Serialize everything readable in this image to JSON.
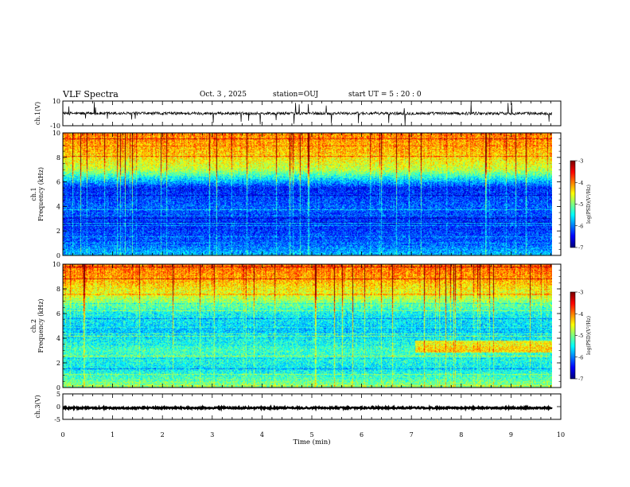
{
  "header": {
    "title": "VLF Spectra",
    "date": "Oct. 3  , 2025",
    "station": "station=OUJ",
    "start": "start  UT  =   5  : 20 : 0"
  },
  "chart_data": [
    {
      "type": "line",
      "name": "waveform-ch1",
      "ylabel": "ch.1(V)",
      "ylim": [
        -10,
        10
      ],
      "yticks": [
        "10",
        "-10"
      ],
      "description_values": {
        "baseline": 0.0,
        "noise_amplitude": 1.2,
        "spike_max": 10
      }
    },
    {
      "type": "heatmap",
      "name": "spectrogram-ch1",
      "ylabel_top": "ch.1",
      "ylabel": "Frequency  (kHz)",
      "ylim": [
        0,
        10
      ],
      "yticks": [
        "0",
        "2",
        "4",
        "6",
        "8",
        "10"
      ],
      "colorbar": {
        "label": "log(PSD)(V²/Hz)",
        "ticks": [
          "-3",
          "-4",
          "-5",
          "-6",
          "-7"
        ],
        "range": [
          -7,
          -3
        ]
      },
      "level_profile": [
        {
          "freq_khz": 0.0,
          "log_psd": -5.8
        },
        {
          "freq_khz": 1.0,
          "log_psd": -6.2
        },
        {
          "freq_khz": 2.5,
          "log_psd": -6.4
        },
        {
          "freq_khz": 4.0,
          "log_psd": -6.2
        },
        {
          "freq_khz": 5.5,
          "log_psd": -6.5
        },
        {
          "freq_khz": 7.0,
          "log_psd": -4.9
        },
        {
          "freq_khz": 8.5,
          "log_psd": -4.4
        },
        {
          "freq_khz": 10.0,
          "log_psd": -4.2
        }
      ]
    },
    {
      "type": "heatmap",
      "name": "spectrogram-ch2",
      "ylabel_top": "ch.2",
      "ylabel": "Frequency  (kHz)",
      "ylim": [
        0,
        10
      ],
      "yticks": [
        "0",
        "2",
        "4",
        "6",
        "8",
        "10"
      ],
      "colorbar": {
        "label": "log(PSD)(V²/Hz)",
        "ticks": [
          "-3",
          "-4",
          "-5",
          "-6",
          "-7"
        ],
        "range": [
          -7,
          -3
        ]
      },
      "level_profile": [
        {
          "freq_khz": 0.0,
          "log_psd": -5.0
        },
        {
          "freq_khz": 1.5,
          "log_psd": -5.6
        },
        {
          "freq_khz": 3.0,
          "log_psd": -5.3
        },
        {
          "freq_khz": 4.5,
          "log_psd": -5.8
        },
        {
          "freq_khz": 6.0,
          "log_psd": -5.6
        },
        {
          "freq_khz": 7.5,
          "log_psd": -4.8
        },
        {
          "freq_khz": 9.0,
          "log_psd": -4.3
        },
        {
          "freq_khz": 10.0,
          "log_psd": -4.1
        }
      ]
    },
    {
      "type": "line",
      "name": "waveform-ch3",
      "ylabel": "ch.3(V)",
      "ylim": [
        -5,
        5
      ],
      "yticks": [
        "5",
        "0",
        "-5"
      ],
      "description_values": {
        "baseline": -0.5,
        "noise_amplitude": 0.3
      }
    }
  ],
  "x_axis": {
    "label": "Time  (min)",
    "xlim": [
      0,
      10
    ],
    "ticks": [
      "0",
      "1",
      "2",
      "3",
      "4",
      "5",
      "6",
      "7",
      "8",
      "9",
      "10"
    ],
    "data_end_min": 9.82
  },
  "colors": {
    "line": "#000000",
    "background": "#ffffff"
  }
}
